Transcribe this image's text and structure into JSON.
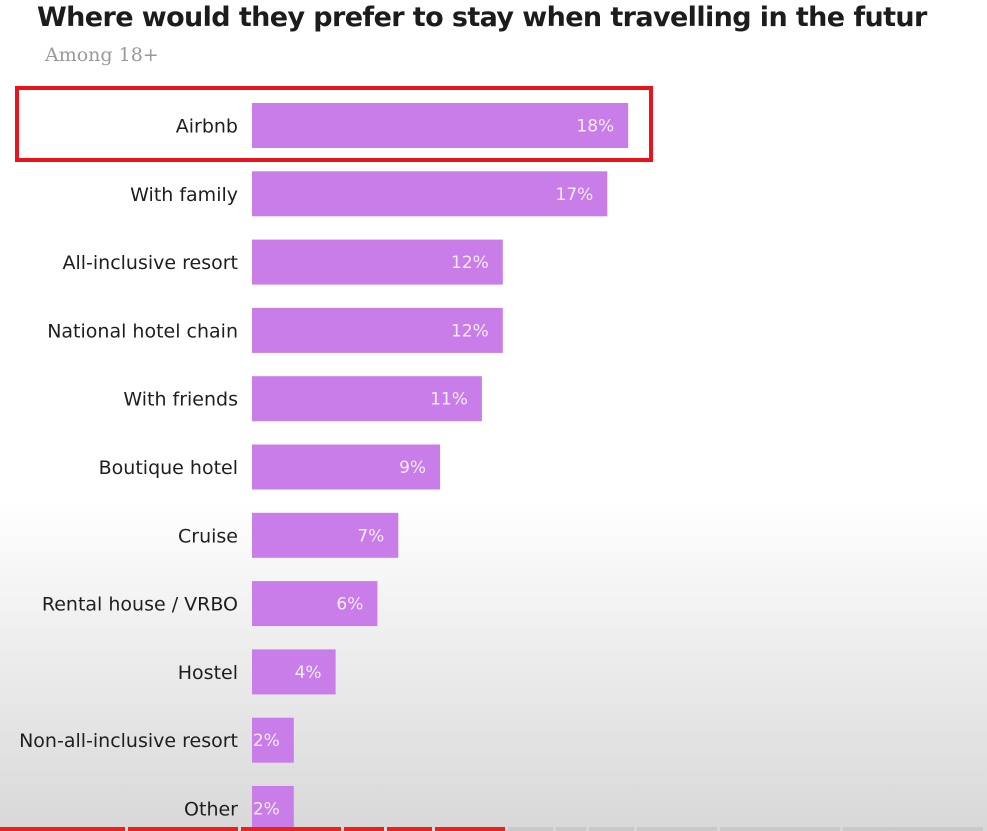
{
  "chart_data": {
    "type": "bar",
    "orientation": "horizontal",
    "title": "Where would they prefer to stay when travelling in the futur",
    "subtitle": "Among 18+",
    "categories": [
      "Airbnb",
      "With family",
      "All-inclusive resort",
      "National hotel chain",
      "With friends",
      "Boutique hotel",
      "Cruise",
      "Rental house / VRBO",
      "Hostel",
      "Non-all-inclusive resort",
      "Other"
    ],
    "values": [
      18,
      17,
      12,
      12,
      11,
      9,
      7,
      6,
      4,
      2,
      2
    ],
    "value_labels": [
      "18%",
      "17%",
      "12%",
      "12%",
      "11%",
      "9%",
      "7%",
      "6%",
      "4%",
      "2%",
      "2%"
    ],
    "bar_color": "#c87de8",
    "highlight_color": "#e8141b",
    "highlighted_category": "Airbnb"
  }
}
